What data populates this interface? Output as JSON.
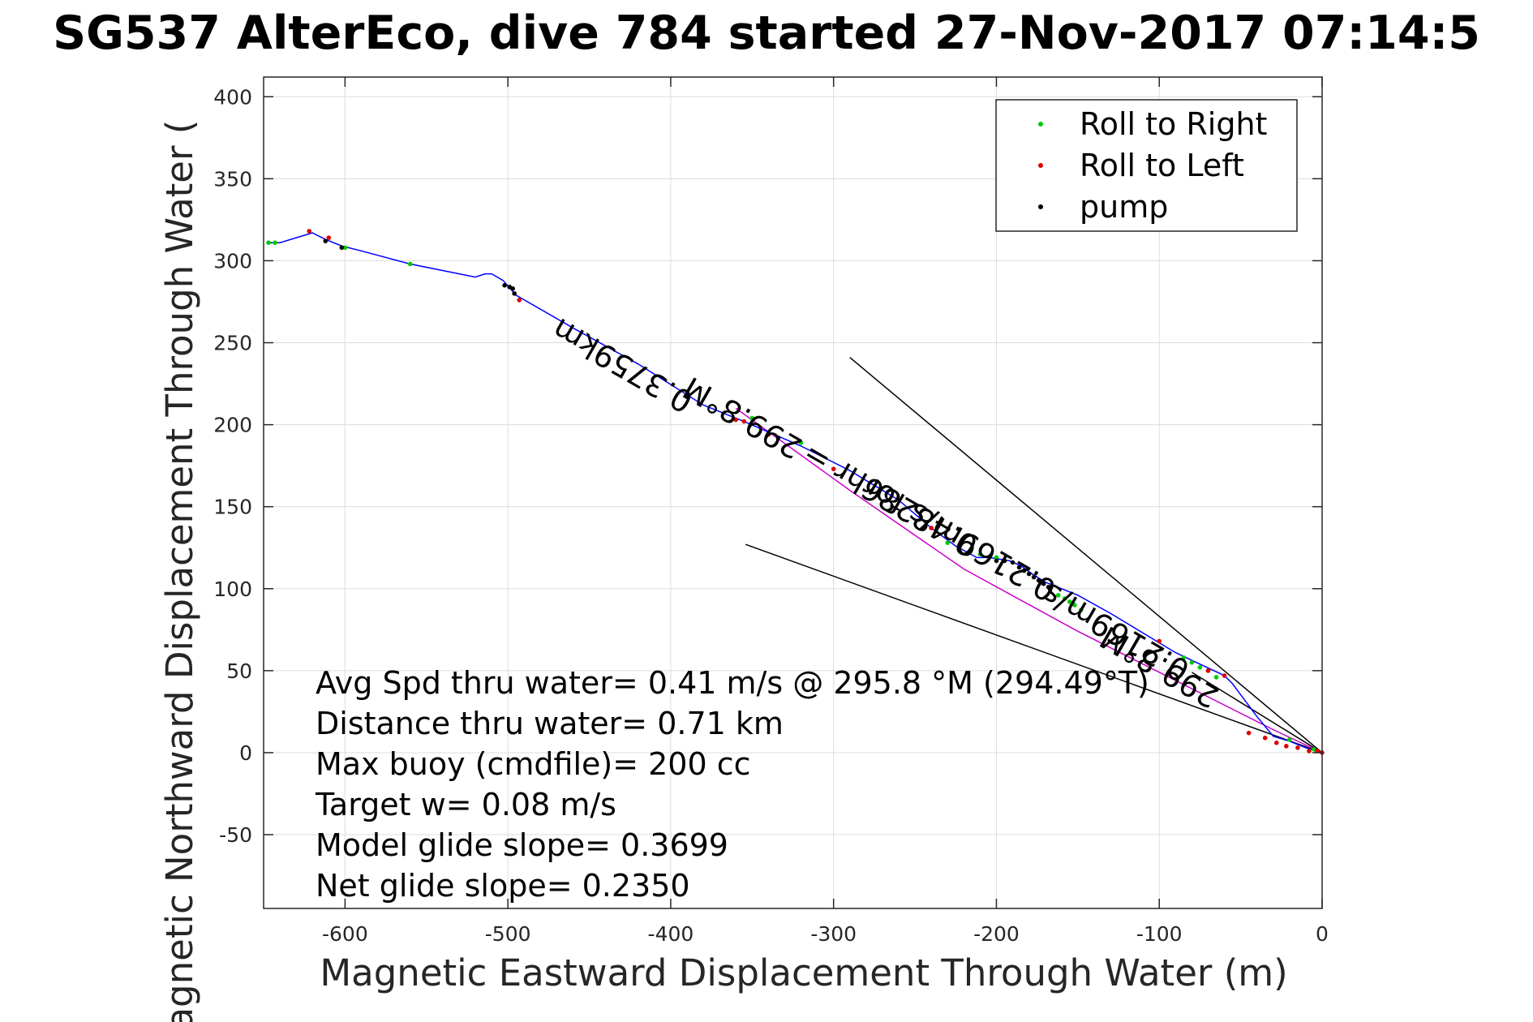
{
  "chart_data": {
    "type": "line",
    "title": "SG537 AlterEco, dive 784 started 27-Nov-2017 07:14:5",
    "xlabel": "Magnetic Eastward Displacement Through Water (m)",
    "ylabel": "Magnetic Northward Displacement Through Water (",
    "xlim": [
      -650,
      0
    ],
    "ylim": [
      -95,
      412
    ],
    "xticks": [
      -600,
      -500,
      -400,
      -300,
      -200,
      -100,
      0
    ],
    "yticks": [
      -50,
      0,
      50,
      100,
      150,
      200,
      250,
      300,
      350,
      400
    ],
    "grid": true,
    "legend": {
      "position": "top-right",
      "entries": [
        {
          "label": "Roll to Right",
          "color": "#00cc00"
        },
        {
          "label": "Roll to Left",
          "color": "#dd0000"
        },
        {
          "label": "pump",
          "color": "#000000"
        }
      ]
    },
    "colors": {
      "track": "#0000ff",
      "heading": "#cc00cc",
      "lines": "#000000"
    },
    "track": {
      "x": [
        0,
        -10,
        -20,
        -30,
        -40,
        -55,
        -60,
        -75,
        -90,
        -110,
        -130,
        -150,
        -160,
        -170,
        -178,
        -185,
        -192,
        -198,
        -204,
        -212,
        -225,
        -240,
        -260,
        -290,
        -320,
        -355,
        -380,
        -420,
        -460,
        -495,
        -503,
        -510,
        -514,
        -520,
        -560,
        -590,
        -602,
        -612,
        -620,
        -630,
        -640,
        -647
      ],
      "y": [
        0,
        3,
        7,
        10,
        22,
        42,
        47,
        54,
        61,
        73,
        85,
        96,
        100,
        104,
        109,
        114,
        117,
        118,
        119,
        119,
        126,
        137,
        154,
        172,
        187,
        202,
        212,
        237,
        259,
        279,
        288,
        292,
        292,
        290,
        298,
        306,
        309,
        313,
        317,
        314,
        311,
        311
      ]
    },
    "heading_line": {
      "x": [
        0,
        -30,
        -80,
        -150,
        -220,
        -290,
        -360
      ],
      "y": [
        0,
        14,
        39,
        74,
        112,
        160,
        210
      ]
    },
    "reference_lines": [
      {
        "x": [
          0,
          -290
        ],
        "y": [
          0,
          241
        ]
      },
      {
        "x": [
          0,
          -354
        ],
        "y": [
          0,
          127
        ]
      },
      {
        "x": [
          0,
          -80
        ],
        "y": [
          0,
          49
        ]
      }
    ],
    "markers": {
      "roll_right": {
        "x": [
          -647,
          -643,
          -600,
          -560,
          -350,
          -320,
          -230,
          -210,
          -200,
          -162,
          -158,
          -155,
          -152,
          -148,
          -85,
          -80,
          -75,
          -70,
          -65,
          -20,
          -5
        ],
        "y": [
          311,
          311,
          308,
          298,
          204,
          189,
          128,
          121,
          119,
          96,
          94,
          92,
          90,
          87,
          58,
          55,
          52,
          50,
          46,
          8,
          2
        ]
      },
      "roll_left": {
        "x": [
          -622,
          -610,
          -493,
          -360,
          -355,
          -340,
          -300,
          -240,
          -100,
          -70,
          -60,
          -45,
          -35,
          -28,
          -22,
          -15,
          -8,
          -3,
          0
        ],
        "y": [
          318,
          314,
          276,
          203,
          202,
          194,
          173,
          137,
          68,
          50,
          47,
          12,
          9,
          6,
          4,
          3,
          1,
          1,
          0
        ]
      },
      "pump": {
        "x": [
          -612,
          -602,
          -502,
          -499,
          -497,
          -496,
          -334,
          -200,
          -195,
          -190,
          -186,
          -183,
          -180,
          -177,
          -174,
          -171,
          -168
        ],
        "y": [
          312,
          308,
          285,
          284,
          283,
          280,
          192,
          117,
          117,
          116,
          113,
          111,
          109,
          107,
          105,
          103,
          101
        ]
      }
    },
    "rotated_labels": [
      {
        "text": "0.3759km",
        "x": -385,
        "y": 218,
        "angle": 210
      },
      {
        "text": "299.8°M",
        "x": -318,
        "y": 190,
        "angle": 210
      },
      {
        "text": "0.48286hr =",
        "x": -210,
        "y": 130,
        "angle": 210
      },
      {
        "text": "0.2169m/s for",
        "x": -162,
        "y": 103,
        "angle": 210
      },
      {
        "text": "299.8°M",
        "x": -62,
        "y": 38,
        "angle": 210
      },
      {
        "text": "0.2169m/s",
        "x": -80,
        "y": 54,
        "angle": 210
      }
    ],
    "annotations": [
      "Avg Spd thru water=  0.41 m/s @ 295.8 °M (294.49°T)",
      "Distance thru water=  0.71 km",
      "Max buoy (cmdfile)= 200 cc",
      "Target w= 0.08 m/s",
      "Model glide slope= 0.3699",
      "Net glide slope= 0.2350"
    ]
  }
}
